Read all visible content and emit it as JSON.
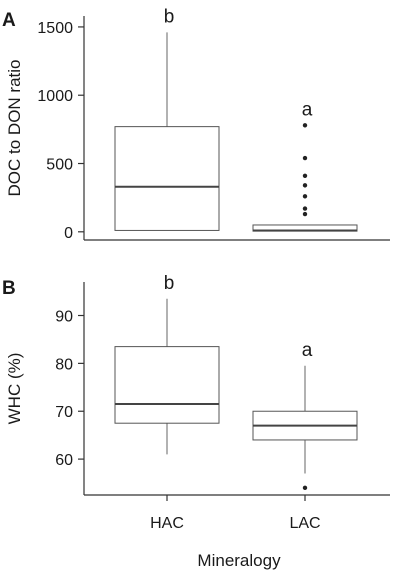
{
  "chart_data": [
    {
      "type": "box",
      "panel_label": "A",
      "ylabel": "DOC to DON ratio",
      "ylim": [
        -60,
        1580
      ],
      "yticks": [
        0,
        500,
        1000,
        1500
      ],
      "categories": [
        "HAC",
        "LAC"
      ],
      "boxes": [
        {
          "category": "HAC",
          "whisker_low": 10,
          "q1": 10,
          "median": 330,
          "q3": 770,
          "whisker_high": 1460,
          "outliers": [],
          "letter": "b"
        },
        {
          "category": "LAC",
          "whisker_low": 5,
          "q1": 5,
          "median": 10,
          "q3": 50,
          "whisker_high": 50,
          "outliers": [
            130,
            170,
            260,
            340,
            410,
            540,
            780
          ],
          "letter": "a"
        }
      ]
    },
    {
      "type": "box",
      "panel_label": "B",
      "ylabel": "WHC (%)",
      "xlabel": "Mineralogy",
      "ylim": [
        52.5,
        97
      ],
      "yticks": [
        60,
        70,
        80,
        90
      ],
      "categories": [
        "HAC",
        "LAC"
      ],
      "boxes": [
        {
          "category": "HAC",
          "whisker_low": 61,
          "q1": 67.5,
          "median": 71.5,
          "q3": 83.5,
          "whisker_high": 93.5,
          "outliers": [],
          "letter": "b"
        },
        {
          "category": "LAC",
          "whisker_low": 57,
          "q1": 64,
          "median": 67,
          "q3": 70,
          "whisker_high": 79.5,
          "outliers": [
            54
          ],
          "letter": "a"
        }
      ]
    }
  ]
}
